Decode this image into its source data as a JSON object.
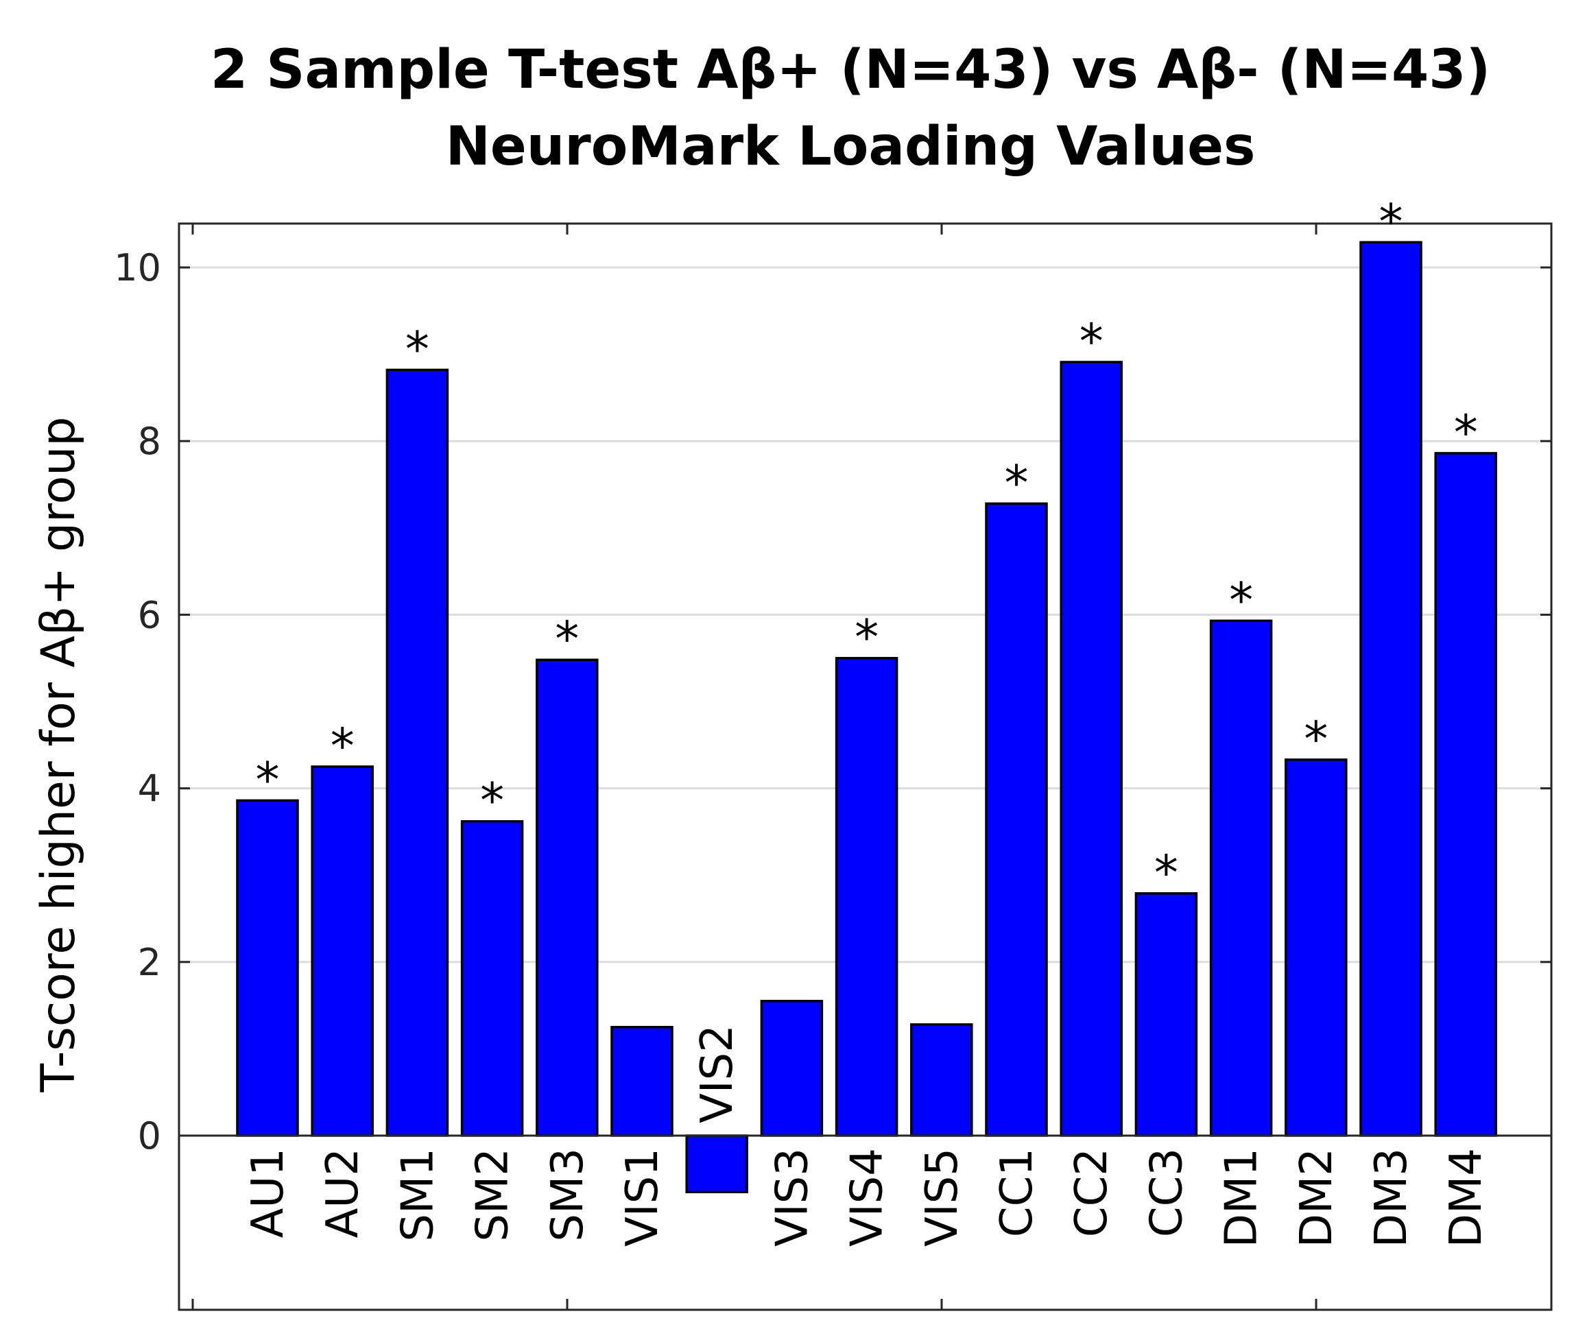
{
  "chart_data": {
    "type": "bar",
    "title": [
      "2 Sample T-test Aβ+ (N=43) vs Aβ- (N=43)",
      "NeuroMark Loading Values"
    ],
    "xlabel": "",
    "ylabel": "T-score higher for Aβ+ group",
    "ylim": [
      -2,
      10.5
    ],
    "yticks": [
      0,
      2,
      4,
      6,
      8,
      10
    ],
    "ytick_labels": [
      "0",
      "2",
      "4",
      "6",
      "8",
      "10"
    ],
    "grid": "y-major",
    "bar_color": "#0000ff",
    "categories": [
      "AU1",
      "AU2",
      "SM1",
      "SM2",
      "SM3",
      "VIS1",
      "VIS2",
      "VIS3",
      "VIS4",
      "VIS5",
      "CC1",
      "CC2",
      "CC3",
      "DM1",
      "DM2",
      "DM3",
      "DM4"
    ],
    "values": [
      3.86,
      4.25,
      8.82,
      3.62,
      5.48,
      1.25,
      -0.65,
      1.55,
      5.5,
      1.28,
      7.28,
      8.91,
      2.79,
      5.93,
      4.33,
      10.29,
      7.86
    ],
    "significant": [
      true,
      true,
      true,
      true,
      true,
      false,
      false,
      false,
      true,
      false,
      true,
      true,
      true,
      true,
      true,
      true,
      true
    ],
    "significance_marker": "*"
  }
}
